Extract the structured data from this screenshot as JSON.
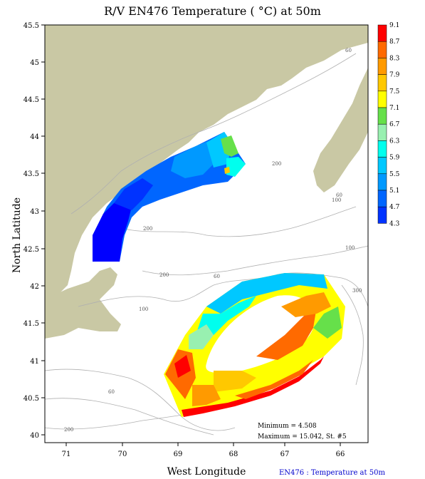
{
  "title": "R/V EN476 Temperature ( °C) at 50m",
  "x_axis_title": "West Longitude",
  "y_axis_title": "North Latitude",
  "footer": "EN476 : Temperature at 50m",
  "stats": {
    "minimum": "Minimum = 4.508",
    "maximum": "Maximum = 15.042, St. #5"
  },
  "lon_ticks": [
    "71",
    "70",
    "69",
    "68",
    "67",
    "66"
  ],
  "lat_ticks": [
    "45.5",
    "45",
    "44.5",
    "44",
    "43.5",
    "43",
    "42.5",
    "42",
    "41.5",
    "41",
    "40.5",
    "40"
  ],
  "legend": {
    "labels": [
      "9.1",
      "8.7",
      "8.3",
      "7.9",
      "7.5",
      "7.1",
      "6.7",
      "6.3",
      "5.9",
      "5.5",
      "5.1",
      "4.7",
      "4.3"
    ],
    "colors": [
      "#ff0000",
      "#ff6a00",
      "#ff9a00",
      "#ffc800",
      "#ffff00",
      "#66e04a",
      "#98f0b0",
      "#00ffee",
      "#00c8ff",
      "#0099ff",
      "#0066ff",
      "#0033ff",
      "#0000ff"
    ]
  },
  "contour_labels": [
    "60",
    "200",
    "100",
    "60",
    "200",
    "100",
    "100",
    "200",
    "300",
    "60",
    "60",
    "200"
  ],
  "colors": {
    "land": "#c9c8a4",
    "contour_line": "#b0b0b0",
    "frame": "#000000"
  }
}
